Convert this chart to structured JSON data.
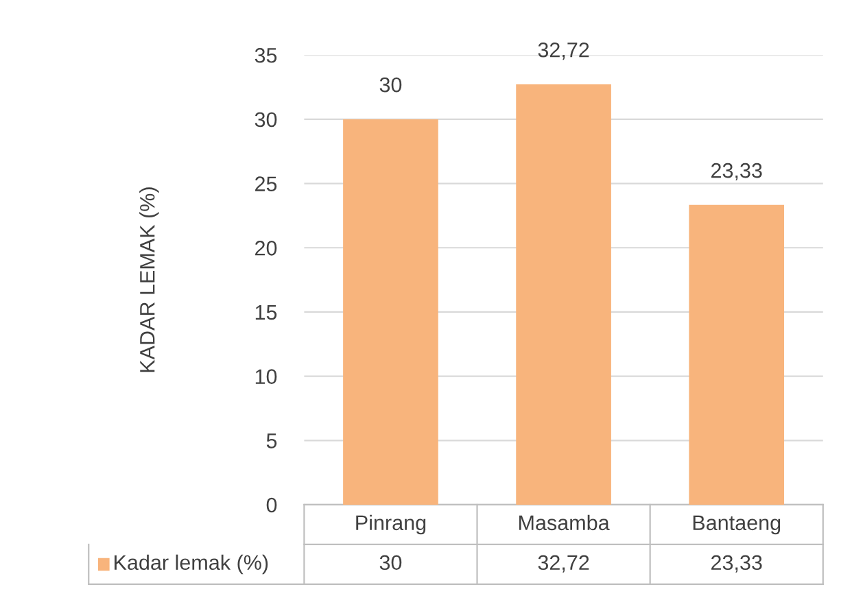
{
  "chart_data": {
    "type": "bar",
    "categories": [
      "Pinrang",
      "Masamba",
      "Bantaeng"
    ],
    "series": [
      {
        "name": "Kadar lemak (%)",
        "color": "#f8b47c",
        "values": [
          30,
          32.72,
          23.33
        ],
        "value_labels": [
          "30",
          "32,72",
          "23,33"
        ]
      }
    ],
    "ylabel": "KADAR LEMAK (%)",
    "ylim": [
      0,
      35
    ],
    "yticks": [
      0,
      5,
      10,
      15,
      20,
      25,
      30,
      35
    ],
    "grid": "y",
    "legend": "bottom"
  }
}
